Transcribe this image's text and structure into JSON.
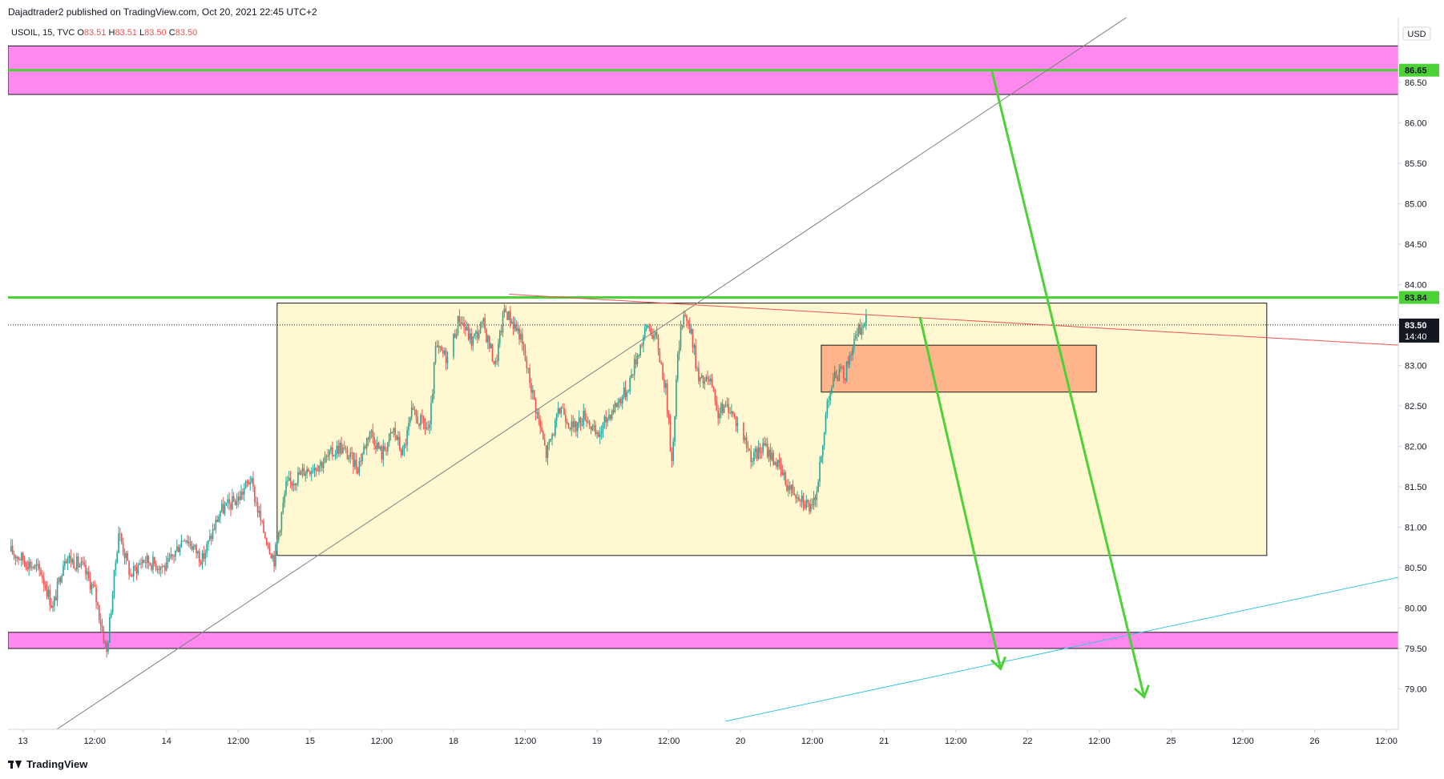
{
  "header": {
    "published_by": "Dajadtrader2 published on TradingView.com, Oct 20, 2021 22:45 UTC+2"
  },
  "legend": {
    "symbol": "USOIL, 15, TVC",
    "open_label": "O",
    "open": "83.51",
    "high_label": "H",
    "high": "83.51",
    "low_label": "L",
    "low": "83.50",
    "close_label": "C",
    "close": "83.50"
  },
  "footer": {
    "brand": "TradingView"
  },
  "colors": {
    "bull": "#26a69a",
    "bear": "#ef5350",
    "zone_magenta": "#ff88ee",
    "range_box": "#fff8d0",
    "order_block": "#ffb58c",
    "green_line": "#4cd137",
    "trend_red": "#ef5350",
    "trend_cyan": "#36c6e0",
    "trend_gray": "#808080"
  },
  "chart_data": {
    "type": "candlestick",
    "instrument": "USOIL",
    "timeframe": "15",
    "currency": "USD",
    "y_axis": {
      "ylim": [
        78.5,
        87.3
      ],
      "ticks": [
        "86.50",
        "86.00",
        "85.50",
        "85.00",
        "84.50",
        "84.00",
        "83.00",
        "82.50",
        "82.00",
        "81.50",
        "81.00",
        "80.50",
        "80.00",
        "79.50",
        "79.00"
      ],
      "badges": [
        {
          "value": "86.65",
          "color": "#4cd137"
        },
        {
          "value": "83.84",
          "color": "#4cd137"
        },
        {
          "value": "83.50",
          "color": "#131722",
          "sub": "14:40"
        }
      ]
    },
    "x_axis": {
      "ticks": [
        {
          "label": "13",
          "t": 0
        },
        {
          "label": "12:00",
          "t": 12
        },
        {
          "label": "14",
          "t": 24
        },
        {
          "label": "12:00",
          "t": 36
        },
        {
          "label": "15",
          "t": 48
        },
        {
          "label": "12:00",
          "t": 60
        },
        {
          "label": "18",
          "t": 72
        },
        {
          "label": "12:00",
          "t": 84
        },
        {
          "label": "19",
          "t": 96
        },
        {
          "label": "12:00",
          "t": 108
        },
        {
          "label": "20",
          "t": 120
        },
        {
          "label": "12:00",
          "t": 132
        },
        {
          "label": "21",
          "t": 144
        },
        {
          "label": "12:00",
          "t": 156
        },
        {
          "label": "22",
          "t": 168
        },
        {
          "label": "12:00",
          "t": 180
        },
        {
          "label": "25",
          "t": 192
        },
        {
          "label": "12:00",
          "t": 204
        },
        {
          "label": "26",
          "t": 216
        },
        {
          "label": "12:00",
          "t": 228
        }
      ],
      "t_range": [
        -2.5,
        230
      ]
    },
    "price_path": [
      [
        -2,
        80.7
      ],
      [
        3,
        80.45
      ],
      [
        5,
        80.0
      ],
      [
        7,
        80.65
      ],
      [
        10,
        80.5
      ],
      [
        12,
        80.2
      ],
      [
        14,
        79.45
      ],
      [
        16,
        80.95
      ],
      [
        18,
        80.4
      ],
      [
        20,
        80.6
      ],
      [
        24,
        80.5
      ],
      [
        27,
        80.9
      ],
      [
        30,
        80.6
      ],
      [
        33,
        81.2
      ],
      [
        36,
        81.35
      ],
      [
        38,
        81.6
      ],
      [
        40,
        81.0
      ],
      [
        42,
        80.6
      ],
      [
        44,
        81.5
      ],
      [
        47,
        81.7
      ],
      [
        50,
        81.8
      ],
      [
        53,
        82.0
      ],
      [
        56,
        81.75
      ],
      [
        58,
        82.2
      ],
      [
        60,
        81.9
      ],
      [
        62,
        82.2
      ],
      [
        63.5,
        81.9
      ],
      [
        65,
        82.4
      ],
      [
        68,
        82.2
      ],
      [
        69,
        83.2
      ],
      [
        71,
        83.1
      ],
      [
        73,
        83.6
      ],
      [
        75,
        83.3
      ],
      [
        77,
        83.5
      ],
      [
        79,
        83.0
      ],
      [
        80.5,
        83.7
      ],
      [
        83,
        83.4
      ],
      [
        84.5,
        82.9
      ],
      [
        86,
        82.4
      ],
      [
        87.5,
        81.9
      ],
      [
        90,
        82.5
      ],
      [
        92,
        82.2
      ],
      [
        94,
        82.4
      ],
      [
        96,
        82.1
      ],
      [
        98,
        82.4
      ],
      [
        101,
        82.7
      ],
      [
        103,
        83.2
      ],
      [
        104.5,
        83.5
      ],
      [
        106,
        83.3
      ],
      [
        107.5,
        82.7
      ],
      [
        108.5,
        81.8
      ],
      [
        109.5,
        83.1
      ],
      [
        110.5,
        83.7
      ],
      [
        112,
        83.3
      ],
      [
        113,
        82.8
      ],
      [
        115,
        82.8
      ],
      [
        116,
        82.4
      ],
      [
        118,
        82.5
      ],
      [
        120,
        82.2
      ],
      [
        122,
        81.85
      ],
      [
        124,
        82.0
      ],
      [
        126,
        81.8
      ],
      [
        128,
        81.5
      ],
      [
        130,
        81.4
      ],
      [
        132,
        81.2
      ],
      [
        133,
        81.6
      ],
      [
        133.8,
        82.0
      ],
      [
        134.5,
        82.6
      ],
      [
        136,
        82.9
      ],
      [
        137.5,
        82.9
      ],
      [
        138.5,
        83.2
      ],
      [
        140,
        83.45
      ],
      [
        141,
        83.55
      ]
    ],
    "session_gaps": [
      [
        71.1,
        71.8
      ],
      [
        119.6,
        120.3
      ]
    ],
    "last_bar_t": 141,
    "zones": [
      {
        "name": "supply-zone",
        "t0": -2.5,
        "t1": 230,
        "y_low": 86.35,
        "y_high": 86.95
      },
      {
        "name": "demand-zone",
        "t0": -2.5,
        "t1": 230,
        "y_low": 79.5,
        "y_high": 79.7
      },
      {
        "name": "range-box",
        "t0": 42.5,
        "t1": 208,
        "y_low": 80.65,
        "y_high": 83.77
      },
      {
        "name": "order-block",
        "t0": 133.5,
        "t1": 179.5,
        "y_low": 82.67,
        "y_high": 83.25
      }
    ],
    "horizontal_lines": [
      {
        "name": "resistance-high",
        "y": 86.65
      },
      {
        "name": "resistance-mid",
        "y": 83.84
      }
    ],
    "trend_lines": [
      {
        "name": "gray-trendline",
        "p1": [
          -2.5,
          78.1
        ],
        "p2": [
          184.5,
          87.3
        ]
      },
      {
        "name": "red-trendline",
        "p1": [
          81.3,
          83.88
        ],
        "p2": [
          230,
          83.25
        ]
      },
      {
        "name": "cyan-trendline",
        "p1": [
          117.5,
          78.6
        ],
        "p2": [
          230,
          80.38
        ]
      }
    ],
    "projection_arrows": [
      {
        "name": "projection-arrow-1",
        "p1": [
          150,
          83.6
        ],
        "p2": [
          163.5,
          79.25
        ]
      },
      {
        "name": "projection-arrow-2",
        "p1": [
          162,
          86.65
        ],
        "p2": [
          187.5,
          78.9
        ]
      }
    ],
    "last_price_line": 83.5
  }
}
